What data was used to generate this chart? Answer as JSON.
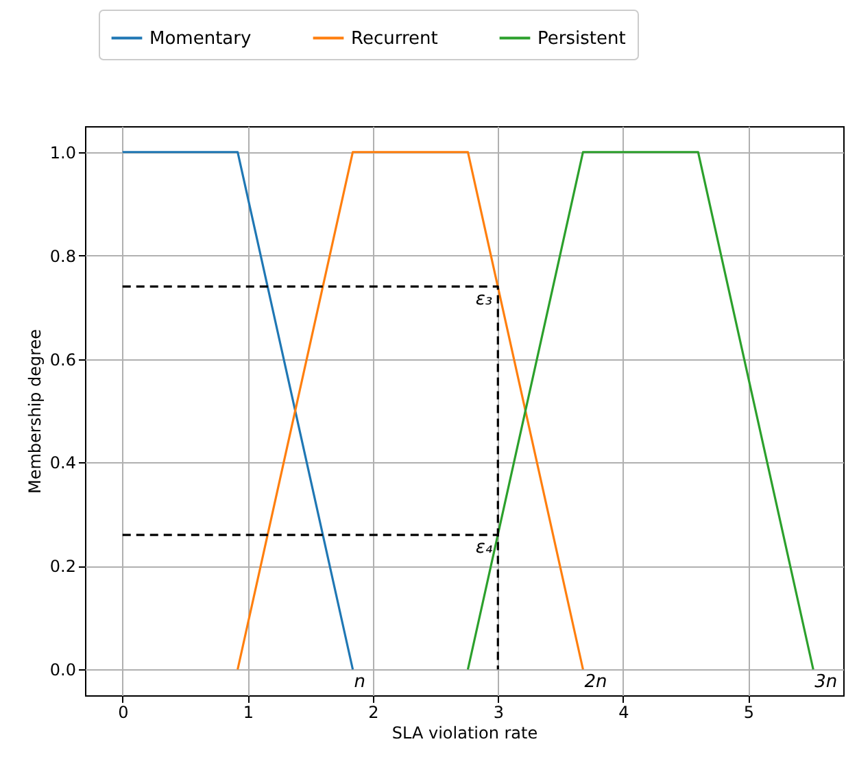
{
  "chart_data": {
    "type": "line",
    "xlabel": "SLA violation rate",
    "ylabel": "Membership degree",
    "xlim": [
      -0.3,
      5.76
    ],
    "ylim": [
      -0.05,
      1.05
    ],
    "xticks": [
      0,
      1,
      2,
      3,
      4,
      5
    ],
    "yticks": [
      {
        "value": 0,
        "label": "0.0"
      },
      {
        "value": 0.2,
        "label": "0.2"
      },
      {
        "value": 0.4,
        "label": "0.4"
      },
      {
        "value": 0.6,
        "label": "0.6"
      },
      {
        "value": 0.8,
        "label": "0.8"
      },
      {
        "value": 1,
        "label": "1.0"
      }
    ],
    "grid": true,
    "legend": "top",
    "line_style": "solid",
    "marker": "none",
    "series": [
      {
        "name": "Momentary",
        "color": "#1f77b4",
        "x": [
          0,
          0.92,
          1.84
        ],
        "values": [
          1,
          1,
          0
        ]
      },
      {
        "name": "Recurrent",
        "color": "#ff7f0e",
        "x": [
          0.92,
          1.84,
          2.76,
          3.68
        ],
        "values": [
          0,
          1,
          1,
          0
        ]
      },
      {
        "name": "Persistent",
        "color": "#2ca02c",
        "x": [
          2.76,
          3.68,
          4.6,
          5.52
        ],
        "values": [
          0,
          1,
          1,
          0
        ]
      },
      {
        "color": "#000000",
        "line_style": "dashed",
        "x": [
          0,
          3,
          3
        ],
        "values": [
          0.74,
          0.74,
          0
        ]
      },
      {
        "color": "#000000",
        "line_style": "dashed",
        "x": [
          0,
          3
        ],
        "values": [
          0.26,
          0.26
        ]
      }
    ],
    "annotations": [
      {
        "text": "ε₃",
        "x": 3,
        "y": 0.74
      },
      {
        "text": "ε₄",
        "x": 3,
        "y": 0.26
      },
      {
        "text": "n",
        "x": 1.84,
        "y": 0
      },
      {
        "text": "2n",
        "x": 3.68,
        "y": 0
      },
      {
        "text": "3n",
        "x": 5.52,
        "y": 0
      }
    ]
  }
}
